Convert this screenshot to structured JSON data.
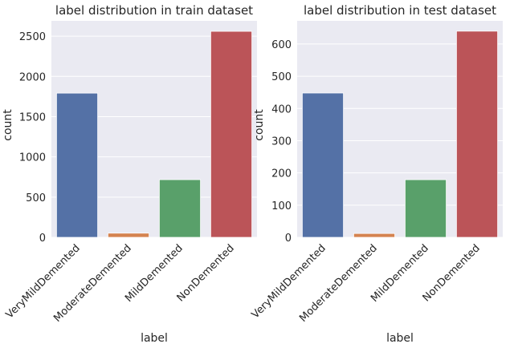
{
  "chart_data": [
    {
      "type": "bar",
      "title": "label distribution in train dataset",
      "xlabel": "label",
      "ylabel": "count",
      "categories": [
        "VeryMildDemented",
        "ModerateDemented",
        "MildDemented",
        "NonDemented"
      ],
      "values": [
        1792,
        52,
        717,
        2560
      ],
      "ylim": [
        0,
        2690
      ],
      "yticks": [
        "0",
        "500",
        "1000",
        "1500",
        "2000",
        "2500"
      ],
      "grid": true,
      "colors": [
        "#5471a6",
        "#d48350",
        "#59a06a",
        "#bb5458"
      ],
      "background": "#eaeaf2"
    },
    {
      "type": "bar",
      "title": "label distribution in test dataset",
      "xlabel": "label",
      "ylabel": "count",
      "categories": [
        "VeryMildDemented",
        "ModerateDemented",
        "MildDemented",
        "NonDemented"
      ],
      "values": [
        448,
        12,
        179,
        640
      ],
      "ylim": [
        0,
        672
      ],
      "yticks": [
        "0",
        "100",
        "200",
        "300",
        "400",
        "500",
        "600"
      ],
      "grid": true,
      "colors": [
        "#5471a6",
        "#d48350",
        "#59a06a",
        "#bb5458"
      ],
      "background": "#eaeaf2"
    }
  ]
}
